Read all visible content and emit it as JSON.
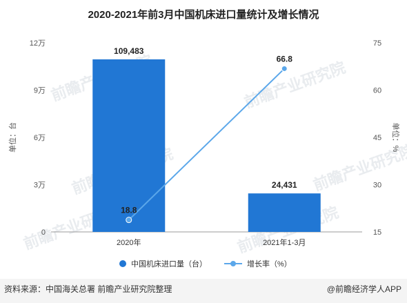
{
  "chart_data": {
    "type": "bar+line",
    "title": "2020-2021年前3月中国机床进口量统计及增长情况",
    "categories": [
      "2020年",
      "2021年1-3月"
    ],
    "series": [
      {
        "name": "中国机床进口量（台）",
        "type": "bar",
        "axis": "left",
        "values": [
          109483,
          24431
        ],
        "value_labels": [
          "109,483",
          "24,431"
        ],
        "color": "#2177d4"
      },
      {
        "name": "增长率（%）",
        "type": "line",
        "axis": "right",
        "values": [
          18.8,
          66.8
        ],
        "value_labels": [
          "18.8",
          "66.8"
        ],
        "color": "#5ba7ea"
      }
    ],
    "y_left": {
      "label": "单位：台",
      "ylim": [
        0,
        120000
      ],
      "ticks": [
        0,
        30000,
        60000,
        90000,
        120000
      ],
      "tick_labels": [
        "0",
        "3万",
        "6万",
        "9万",
        "12万"
      ]
    },
    "y_right": {
      "label": "单位：%",
      "ylim": [
        15,
        75
      ],
      "ticks": [
        15,
        30,
        45,
        60,
        75
      ],
      "tick_labels": [
        "15",
        "30",
        "45",
        "60",
        "75"
      ]
    },
    "grid": false,
    "legend_position": "bottom"
  },
  "watermark": "前瞻产业研究院",
  "footer": {
    "source": "资料来源：中国海关总署 前瞻产业研究院整理",
    "brand": "@前瞻经济学人APP"
  }
}
